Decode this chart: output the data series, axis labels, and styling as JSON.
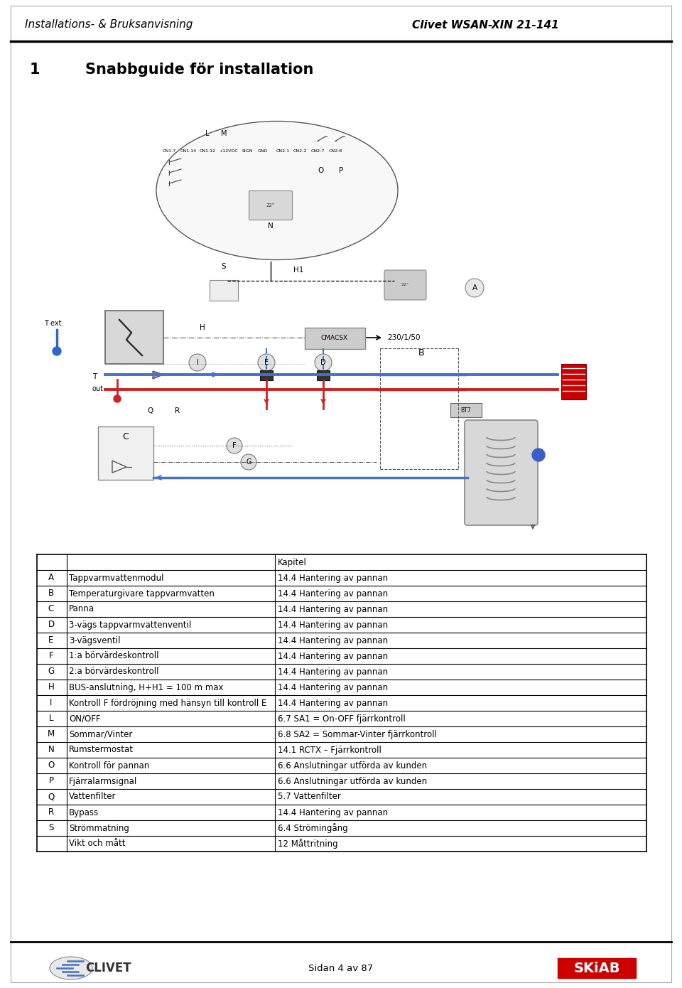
{
  "header_left": "Installations- & Bruksanvisning",
  "header_right": "Clivet WSAN-XIN 21-141",
  "section_number": "1",
  "section_title": "Snabbguide för installation",
  "footer_text": "Sidan 4 av 87",
  "table_header_col3": "Kapitel",
  "table_rows": [
    [
      "A",
      "Tappvarmvattenmodul",
      "14.4 Hantering av pannan"
    ],
    [
      "B",
      "Temperaturgivare tappvarmvatten",
      "14.4 Hantering av pannan"
    ],
    [
      "C",
      "Panna",
      "14.4 Hantering av pannan"
    ],
    [
      "D",
      "3-vägs tappvarmvattenventil",
      "14.4 Hantering av pannan"
    ],
    [
      "E",
      "3-vägsventil",
      "14.4 Hantering av pannan"
    ],
    [
      "F",
      "1:a börvärdeskontroll",
      "14.4 Hantering av pannan"
    ],
    [
      "G",
      "2:a börvärdeskontroll",
      "14.4 Hantering av pannan"
    ],
    [
      "H",
      "BUS-anslutning, H+H1 = 100 m max",
      "14.4 Hantering av pannan"
    ],
    [
      "I",
      "Kontroll F fördröjning med hänsyn till kontroll E",
      "14.4 Hantering av pannan"
    ],
    [
      "L",
      "ON/OFF",
      "6.7 SA1 = On-OFF fjärrkontroll"
    ],
    [
      "M",
      "Sommar/Vinter",
      "6.8 SA2 = Sommar-Vinter fjärrkontroll"
    ],
    [
      "N",
      "Rumstermostat",
      "14.1 RCTX – Fjärrkontroll"
    ],
    [
      "O",
      "Kontroll för pannan",
      "6.6 Anslutningar utförda av kunden"
    ],
    [
      "P",
      "Fjärralarmsignal",
      "6.6 Anslutningar utförda av kunden"
    ],
    [
      "Q",
      "Vattenfilter",
      "5.7 Vattenfilter"
    ],
    [
      "R",
      "Bypass",
      "14.4 Hantering av pannan"
    ],
    [
      "S",
      "Strömmatning",
      "6.4 Strömingång"
    ],
    [
      "",
      "Vikt och mått",
      "12 Måttritning"
    ]
  ],
  "bg_color": "#ffffff",
  "header_font_size": 11,
  "title_font_size": 15,
  "table_font_size": 8.5
}
